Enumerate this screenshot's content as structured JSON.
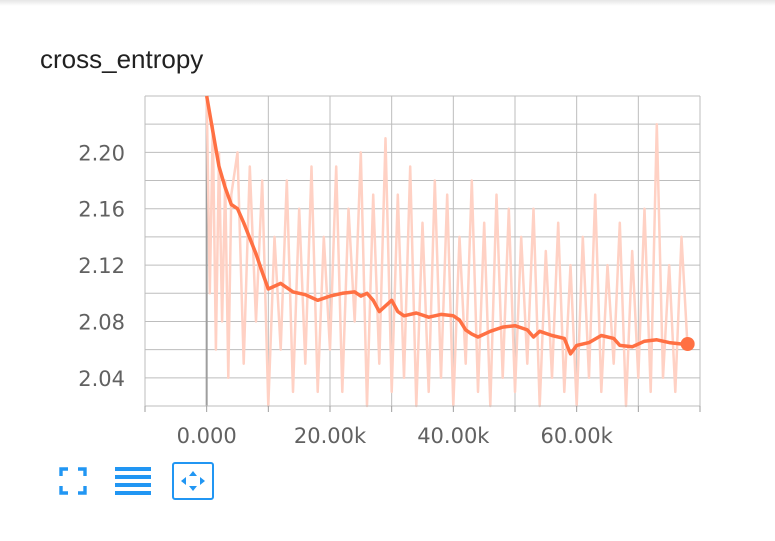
{
  "colors": {
    "line": "#ff7043",
    "raw_line": "#ffd1c4",
    "grid": "#bdbdbd",
    "icon": "#2196f3"
  },
  "card": {
    "title": "cross_entropy"
  },
  "toolbar": {
    "buttons": [
      {
        "icon": "fullscreen-icon"
      },
      {
        "icon": "data-selection-icon"
      },
      {
        "icon": "fit-domain-icon",
        "active": true
      }
    ]
  },
  "chart_data": {
    "type": "line",
    "title": "cross_entropy",
    "xlabel": "",
    "ylabel": "",
    "xlim": [
      -10000,
      80000
    ],
    "ylim": [
      2.02,
      2.24
    ],
    "x_tick_values": [
      0,
      20000,
      40000,
      60000
    ],
    "x_tick_labels": [
      "0.000",
      "20.00k",
      "40.00k",
      "60.00k"
    ],
    "y_tick_values": [
      2.04,
      2.08,
      2.12,
      2.16,
      2.2
    ],
    "y_tick_labels": [
      "2.04",
      "2.08",
      "2.12",
      "2.16",
      "2.20"
    ],
    "grid": true,
    "series": [
      {
        "role": "smoothed",
        "x": [
          0,
          1000,
          2000,
          3000,
          4000,
          5000,
          6000,
          8000,
          9000,
          10000,
          12000,
          14000,
          16000,
          17000,
          18000,
          20000,
          22000,
          24000,
          25000,
          26000,
          27000,
          28000,
          30000,
          31000,
          32000,
          34000,
          36000,
          38000,
          40000,
          41000,
          42000,
          43000,
          44000,
          46000,
          48000,
          50000,
          52000,
          53000,
          54000,
          56000,
          58000,
          59000,
          60000,
          62000,
          64000,
          66000,
          67000,
          69000,
          71000,
          73000,
          75000,
          77000,
          78000
        ],
        "y": [
          2.24,
          2.215,
          2.19,
          2.175,
          2.163,
          2.16,
          2.15,
          2.128,
          2.115,
          2.103,
          2.107,
          2.101,
          2.099,
          2.097,
          2.095,
          2.098,
          2.1,
          2.101,
          2.098,
          2.1,
          2.095,
          2.087,
          2.095,
          2.087,
          2.084,
          2.086,
          2.083,
          2.085,
          2.084,
          2.081,
          2.074,
          2.071,
          2.069,
          2.073,
          2.076,
          2.077,
          2.074,
          2.069,
          2.073,
          2.07,
          2.068,
          2.057,
          2.063,
          2.065,
          2.07,
          2.068,
          2.063,
          2.062,
          2.066,
          2.067,
          2.065,
          2.064,
          2.064
        ]
      },
      {
        "role": "raw",
        "x": [
          0,
          500,
          1000,
          1500,
          2000,
          2500,
          3000,
          3500,
          4000,
          5000,
          6000,
          7000,
          8000,
          9000,
          10000,
          11000,
          12000,
          13000,
          14000,
          15000,
          16000,
          17000,
          18000,
          19000,
          20000,
          21000,
          22000,
          23000,
          24000,
          25000,
          26000,
          27000,
          28000,
          29000,
          30000,
          31000,
          32000,
          33000,
          34000,
          35000,
          36000,
          37000,
          38000,
          39000,
          40000,
          41000,
          42000,
          43000,
          44000,
          45000,
          46000,
          47000,
          48000,
          49000,
          50000,
          51000,
          52000,
          53000,
          54000,
          55000,
          56000,
          57000,
          58000,
          59000,
          60000,
          61000,
          62000,
          63000,
          64000,
          65000,
          66000,
          67000,
          68000,
          69000,
          70000,
          71000,
          72000,
          73000,
          74000,
          75000,
          76000,
          77000,
          78000
        ],
        "y": [
          2.24,
          2.1,
          2.22,
          2.06,
          2.2,
          2.08,
          2.18,
          2.04,
          2.17,
          2.2,
          2.05,
          2.19,
          2.08,
          2.18,
          2.02,
          2.14,
          2.06,
          2.18,
          2.03,
          2.16,
          2.05,
          2.19,
          2.03,
          2.14,
          2.06,
          2.19,
          2.03,
          2.16,
          2.08,
          2.2,
          2.02,
          2.17,
          2.05,
          2.21,
          2.03,
          2.17,
          2.04,
          2.19,
          2.02,
          2.15,
          2.03,
          2.18,
          2.04,
          2.17,
          2.02,
          2.14,
          2.05,
          2.18,
          2.03,
          2.15,
          2.02,
          2.17,
          2.04,
          2.16,
          2.03,
          2.14,
          2.05,
          2.16,
          2.02,
          2.13,
          2.04,
          2.15,
          2.03,
          2.12,
          2.02,
          2.14,
          2.04,
          2.17,
          2.03,
          2.12,
          2.05,
          2.15,
          2.02,
          2.13,
          2.04,
          2.16,
          2.03,
          2.22,
          2.04,
          2.12,
          2.03,
          2.14,
          2.06
        ]
      }
    ]
  }
}
